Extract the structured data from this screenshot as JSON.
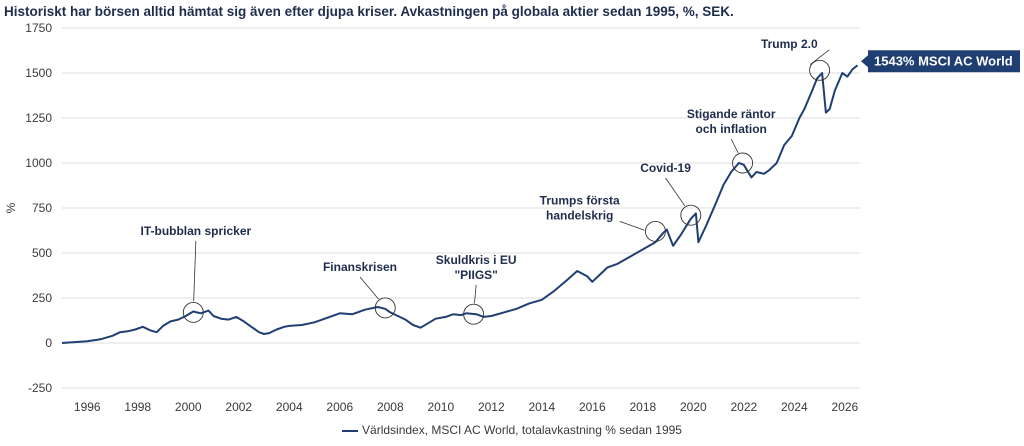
{
  "title": "Historiskt har börsen alltid hämtat sig även efter djupa kriser. Avkastningen på globala aktier sedan 1995, %, SEK.",
  "legend_label": "Världsindex, MSCI AC World, totalavkastning % sedan 1995",
  "end_label": "1543% MSCI AC World",
  "colors": {
    "line": "#1f3f73",
    "end_label_bg": "#1f3f73",
    "text": "#1f2d4d",
    "grid": "#dcdcdc"
  },
  "chart_data": {
    "type": "line",
    "ylabel": "%",
    "xlim": [
      1995,
      2026.6
    ],
    "ylim": [
      -250,
      1750
    ],
    "y_ticks": [
      -250,
      0,
      250,
      500,
      750,
      1000,
      1250,
      1500,
      1750
    ],
    "x_ticks": [
      1996,
      1998,
      2000,
      2002,
      2004,
      2006,
      2008,
      2010,
      2012,
      2014,
      2016,
      2018,
      2020,
      2022,
      2024,
      2026
    ],
    "grid": true,
    "legend_position": "bottom",
    "series": [
      {
        "name": "Världsindex, MSCI AC World, totalavkastning % sedan 1995",
        "x": [
          1995.0,
          1995.5,
          1996.0,
          1996.5,
          1997.0,
          1997.3,
          1997.6,
          1997.9,
          1998.2,
          1998.5,
          1998.75,
          1999.0,
          1999.3,
          1999.6,
          1999.9,
          2000.2,
          2000.5,
          2000.8,
          2001.0,
          2001.3,
          2001.6,
          2001.9,
          2002.2,
          2002.5,
          2002.8,
          2003.0,
          2003.2,
          2003.5,
          2003.8,
          2004.0,
          2004.5,
          2005.0,
          2005.5,
          2006.0,
          2006.5,
          2007.0,
          2007.5,
          2007.8,
          2008.0,
          2008.3,
          2008.6,
          2008.9,
          2009.2,
          2009.5,
          2009.8,
          2010.2,
          2010.5,
          2010.8,
          2011.0,
          2011.4,
          2011.7,
          2012.0,
          2012.5,
          2013.0,
          2013.5,
          2014.0,
          2014.5,
          2015.0,
          2015.4,
          2015.8,
          2016.0,
          2016.3,
          2016.6,
          2017.0,
          2017.5,
          2018.0,
          2018.5,
          2018.8,
          2018.95,
          2019.2,
          2019.5,
          2019.9,
          2020.1,
          2020.2,
          2020.5,
          2020.9,
          2021.2,
          2021.5,
          2021.8,
          2022.0,
          2022.3,
          2022.5,
          2022.8,
          2023.0,
          2023.3,
          2023.6,
          2023.9,
          2024.2,
          2024.4,
          2024.7,
          2024.9,
          2025.1,
          2025.25,
          2025.4,
          2025.6,
          2025.9,
          2026.1,
          2026.3,
          2026.5
        ],
        "values": [
          0,
          5,
          10,
          20,
          40,
          60,
          65,
          75,
          90,
          70,
          60,
          95,
          120,
          130,
          150,
          175,
          165,
          180,
          150,
          135,
          130,
          145,
          120,
          90,
          60,
          50,
          55,
          75,
          90,
          95,
          100,
          115,
          140,
          165,
          160,
          185,
          200,
          190,
          170,
          150,
          130,
          100,
          85,
          110,
          135,
          145,
          160,
          155,
          165,
          160,
          145,
          150,
          170,
          190,
          220,
          240,
          290,
          350,
          400,
          370,
          340,
          380,
          420,
          440,
          480,
          520,
          560,
          610,
          630,
          540,
          600,
          690,
          720,
          560,
          650,
          780,
          880,
          950,
          1000,
          990,
          920,
          950,
          940,
          960,
          1000,
          1100,
          1150,
          1250,
          1300,
          1400,
          1470,
          1500,
          1280,
          1300,
          1400,
          1500,
          1480,
          1520,
          1543
        ]
      }
    ],
    "annotations": [
      {
        "text": [
          "IT-bubblan spricker"
        ],
        "x": 2000.2,
        "y": 170,
        "label_x": 2000.3,
        "label_y": 600
      },
      {
        "text": [
          "Finanskrisen"
        ],
        "x": 2007.8,
        "y": 195,
        "label_x": 2006.8,
        "label_y": 400
      },
      {
        "text": [
          "Skuldkris i EU",
          "\"PIIGS\""
        ],
        "x": 2011.3,
        "y": 160,
        "label_x": 2011.4,
        "label_y": 440
      },
      {
        "text": [
          "Trumps första",
          "handelskrig"
        ],
        "x": 2018.5,
        "y": 620,
        "label_x": 2015.5,
        "label_y": 770
      },
      {
        "text": [
          "Covid-19"
        ],
        "x": 2019.9,
        "y": 710,
        "label_x": 2018.9,
        "label_y": 950
      },
      {
        "text": [
          "Stigande räntor",
          "och inflation"
        ],
        "x": 2021.95,
        "y": 1000,
        "label_x": 2021.5,
        "label_y": 1250
      },
      {
        "text": [
          "Trump 2.0"
        ],
        "x": 2025.0,
        "y": 1515,
        "label_x": 2023.8,
        "label_y": 1640
      }
    ]
  }
}
